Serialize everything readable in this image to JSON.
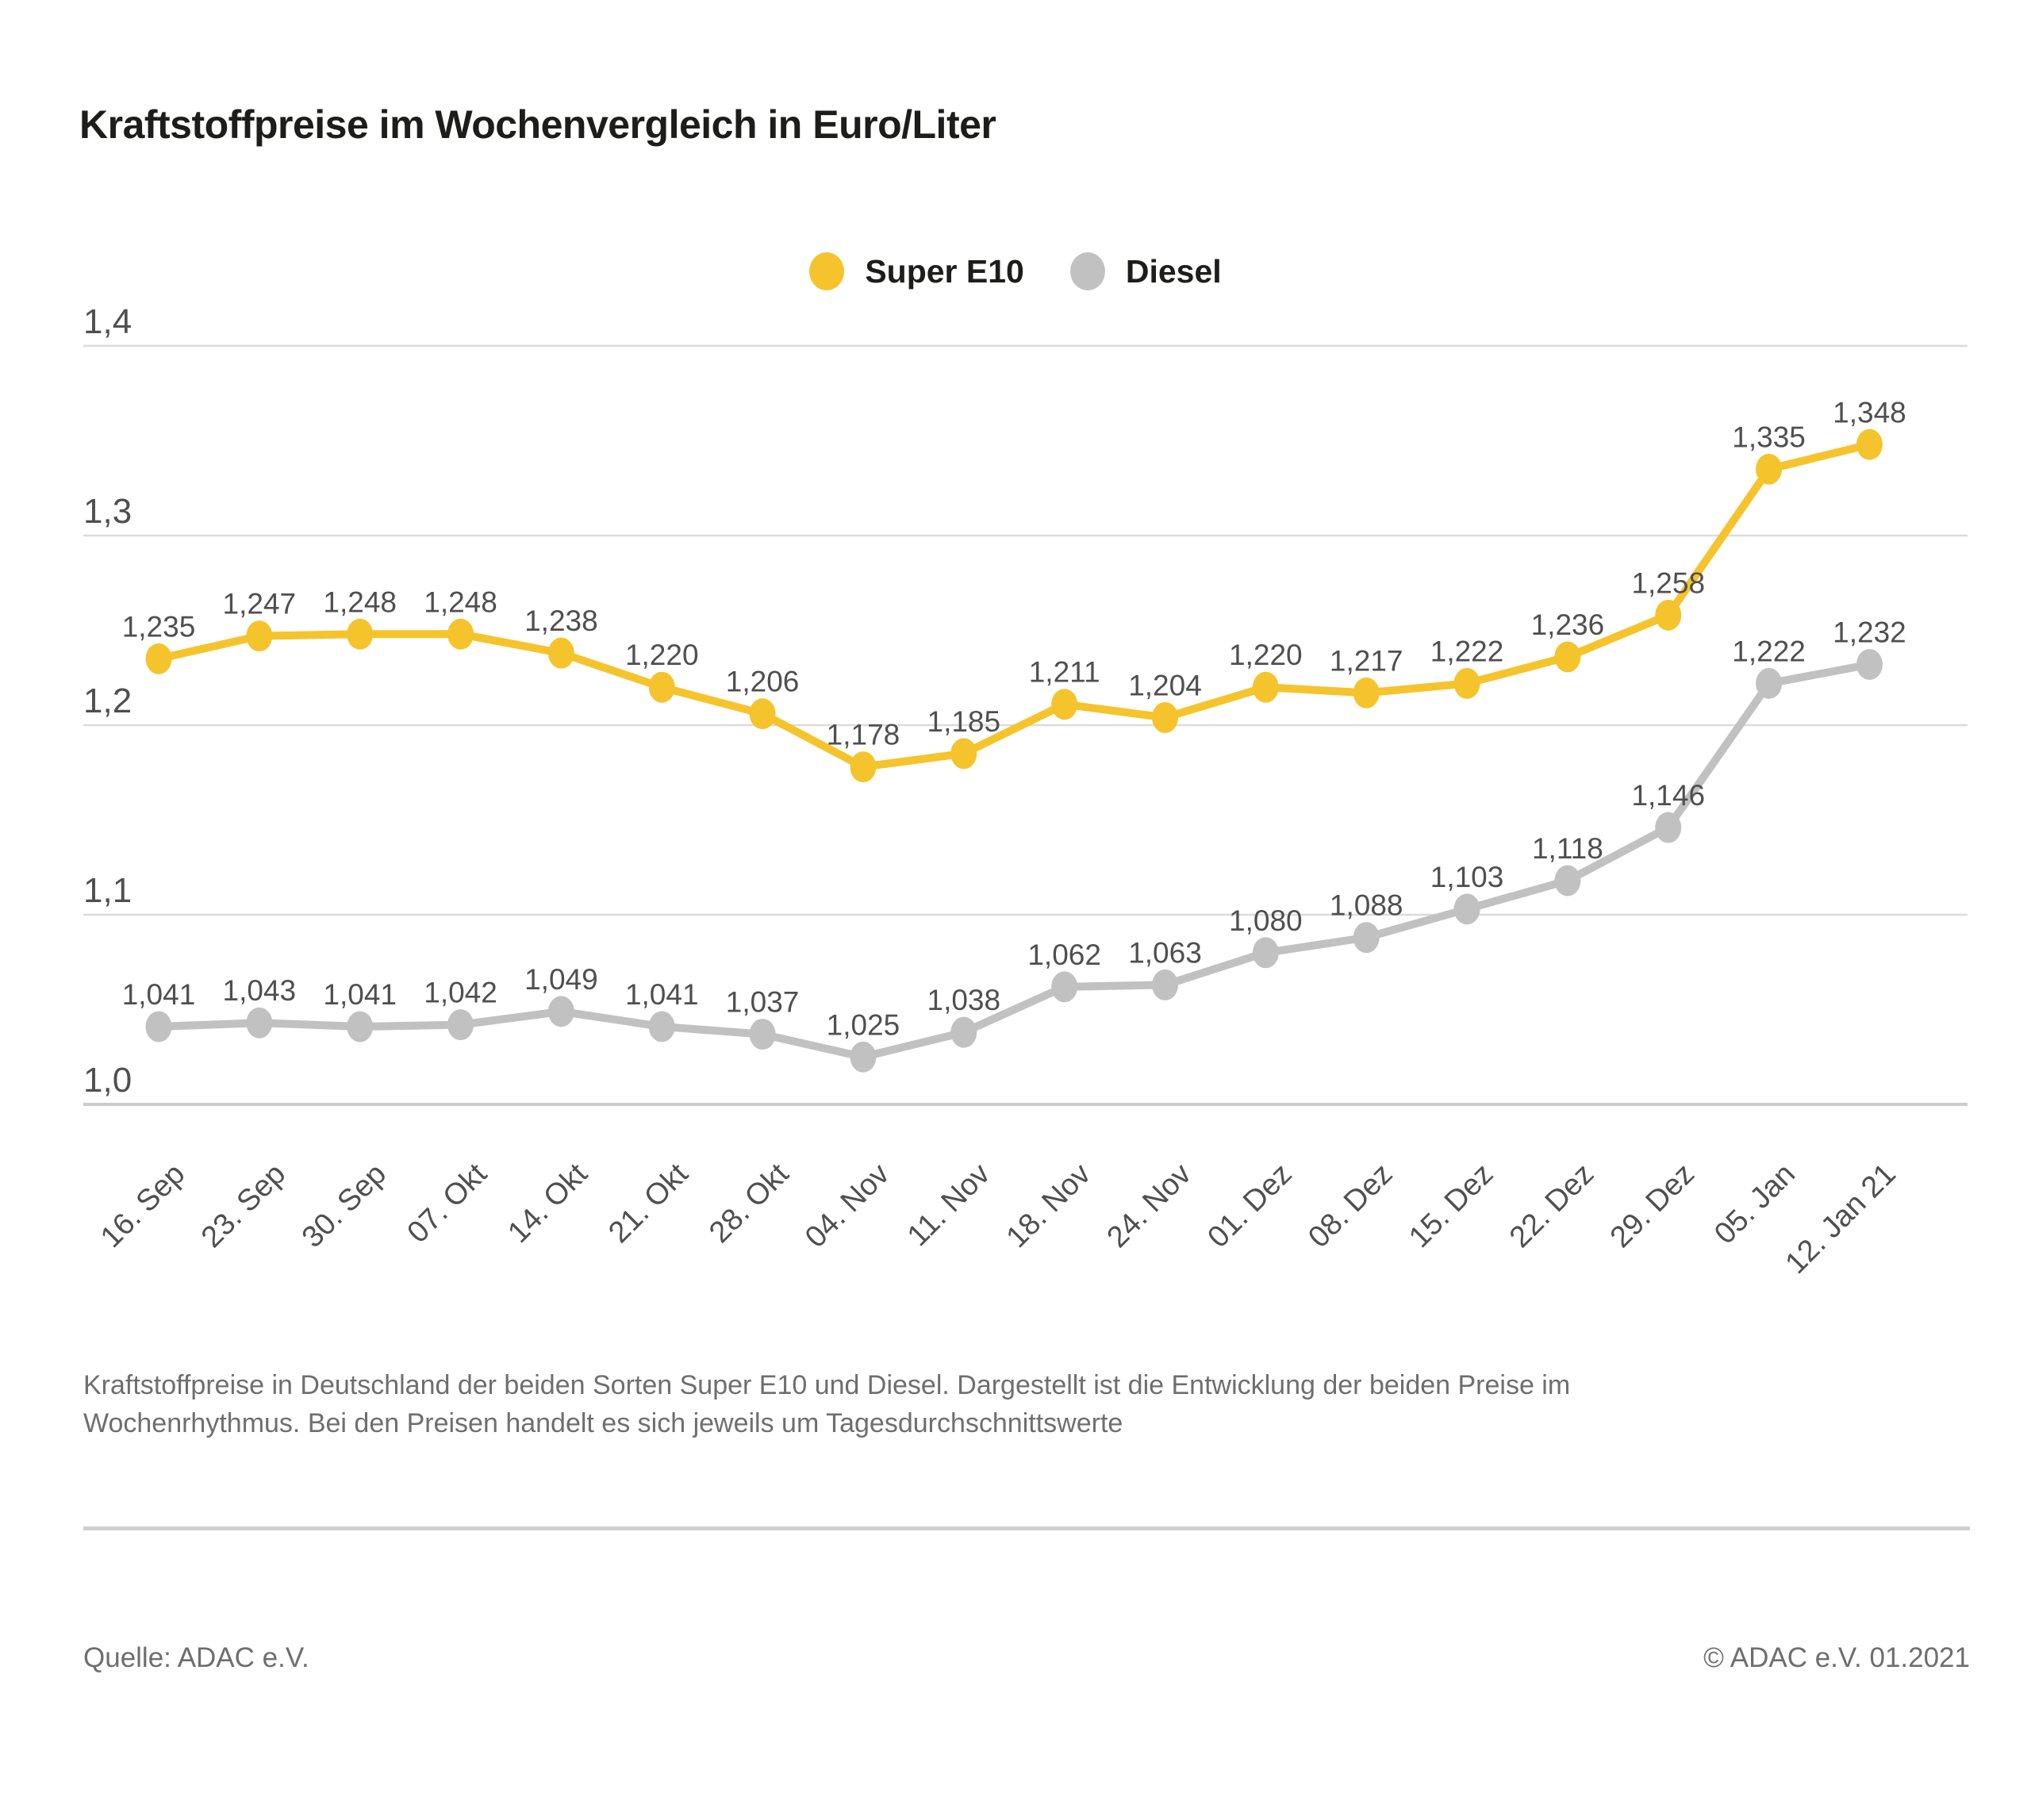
{
  "title": "Kraftstoffpreise im Wochenvergleich in Euro/Liter",
  "chart_data": {
    "type": "line",
    "categories": [
      "16. Sep",
      "23. Sep",
      "30. Sep",
      "07. Okt",
      "14. Okt",
      "21. Okt",
      "28. Okt",
      "04. Nov",
      "11. Nov",
      "18. Nov",
      "24. Nov",
      "01. Dez",
      "08. Dez",
      "15. Dez",
      "22. Dez",
      "29. Dez",
      "05. Jan",
      "12. Jan 21"
    ],
    "series": [
      {
        "name": "Super E10",
        "color": "#f5c42d",
        "values": [
          1.235,
          1.247,
          1.248,
          1.248,
          1.238,
          1.22,
          1.206,
          1.178,
          1.185,
          1.211,
          1.204,
          1.22,
          1.217,
          1.222,
          1.236,
          1.258,
          1.335,
          1.348
        ]
      },
      {
        "name": "Diesel",
        "color": "#c1c1c1",
        "values": [
          1.041,
          1.043,
          1.041,
          1.042,
          1.049,
          1.041,
          1.037,
          1.025,
          1.038,
          1.062,
          1.063,
          1.08,
          1.088,
          1.103,
          1.118,
          1.146,
          1.222,
          1.232
        ]
      }
    ],
    "ylabel": "Euro/Liter",
    "ylim": [
      1.0,
      1.4
    ],
    "ytick_step": 0.1,
    "ytick_labels": [
      "1,0",
      "1,1",
      "1,2",
      "1,3",
      "1,4"
    ],
    "decimal_separator": ",",
    "grid": "horizontal",
    "legend_position": "top-center",
    "value_labels": true,
    "colors": {
      "grid_line": "#dcdcdc",
      "base_line": "#cccccc",
      "tick_text": "#4f4f4f",
      "value_label_text": "#4f4f4f"
    }
  },
  "footnote": {
    "line1": "Kraftstoffpreise in Deutschland der beiden Sorten Super E10 und Diesel. Dargestellt ist die Entwicklung der beiden Preise im",
    "line2": "Wochenrhythmus. Bei den Preisen handelt es sich jeweils um Tagesdurchschnittswerte"
  },
  "source": {
    "left": "Quelle: ADAC e.V.",
    "right": "© ADAC e.V. 01.2021"
  }
}
